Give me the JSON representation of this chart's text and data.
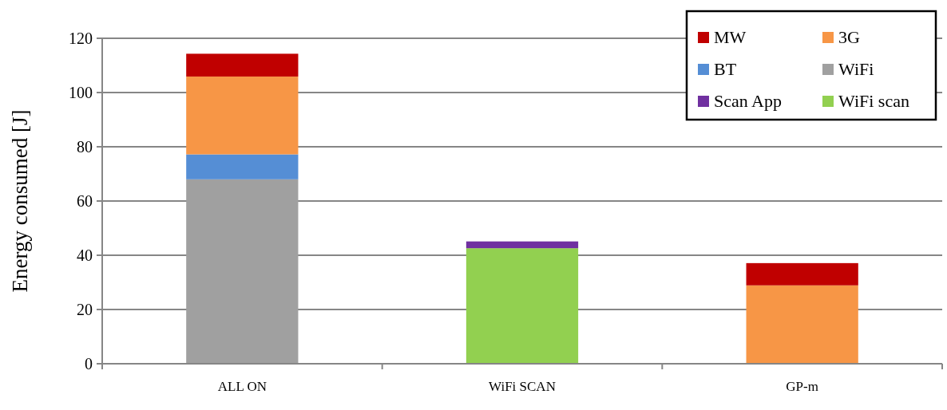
{
  "chart_data": {
    "type": "bar",
    "stacked": true,
    "ylabel": "Energy consumed [J]",
    "categories": [
      "ALL ON",
      "WiFi SCAN",
      "GP-m"
    ],
    "series": [
      {
        "name": "WiFi scan",
        "color": "#92d050",
        "values": [
          0,
          42.6,
          0
        ]
      },
      {
        "name": "Scan App",
        "color": "#7030a0",
        "values": [
          0,
          2.5,
          0
        ]
      },
      {
        "name": "WiFi",
        "color": "#a0a0a0",
        "values": [
          68,
          0,
          0
        ]
      },
      {
        "name": "BT",
        "color": "#558ed5",
        "values": [
          9.2,
          0,
          0
        ]
      },
      {
        "name": "3G",
        "color": "#f79646",
        "values": [
          28.7,
          0,
          28.9
        ]
      },
      {
        "name": "MW",
        "color": "#c00000",
        "values": [
          8.4,
          0,
          8.2
        ]
      }
    ],
    "ylim": [
      0,
      120
    ],
    "yticks": [
      0,
      20,
      40,
      60,
      80,
      100,
      120
    ],
    "grid": "y",
    "legend": "top right"
  }
}
